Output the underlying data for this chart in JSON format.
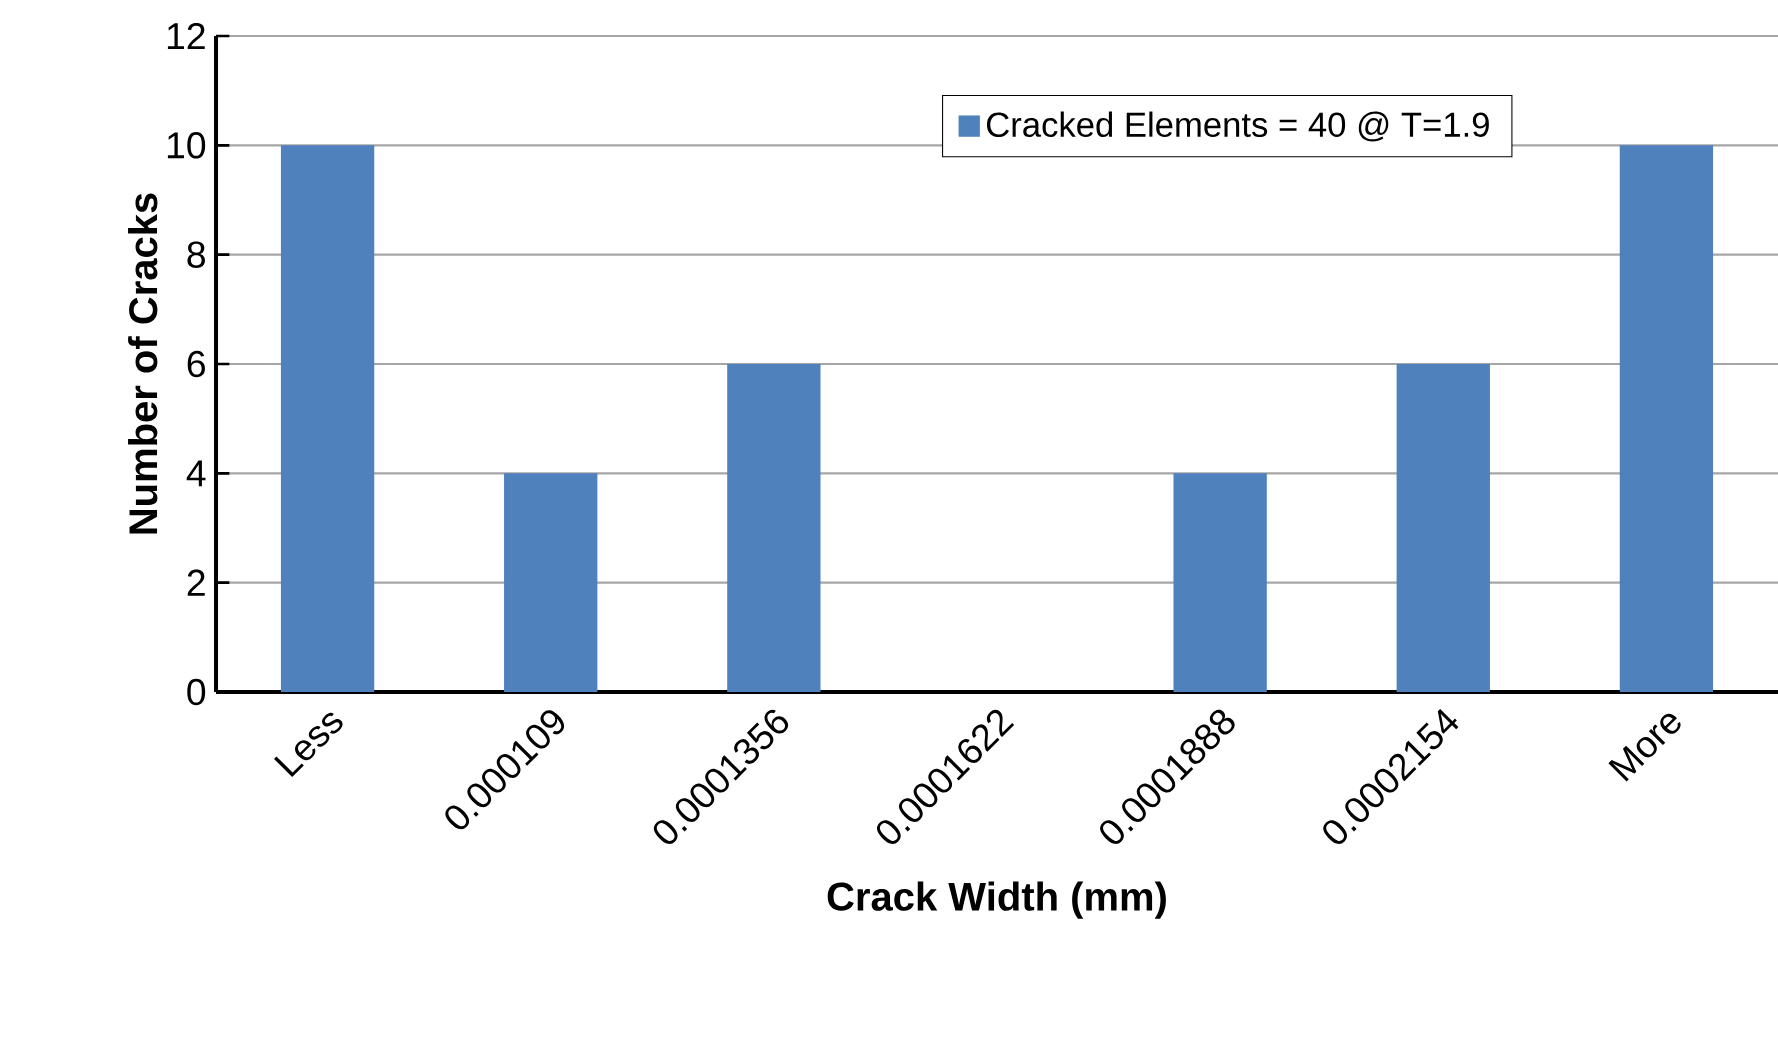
{
  "chart_data": {
    "type": "bar",
    "xlabel": "Crack Width (mm)",
    "ylabel": "Number of Cracks",
    "categories": [
      "Less",
      "0.000109",
      "0.0001356",
      "0.0001622",
      "0.0001888",
      "0.0002154",
      "More"
    ],
    "series": [
      {
        "name": "Cracked Elements = 40 @ T=1.9",
        "color": "#4f81bd",
        "values": [
          10,
          4,
          6,
          0,
          4,
          6,
          10
        ]
      }
    ],
    "ylim": [
      0,
      12
    ],
    "yticks": [
      0,
      2,
      4,
      6,
      8,
      10,
      12
    ],
    "grid": "y",
    "legend": "top right"
  }
}
